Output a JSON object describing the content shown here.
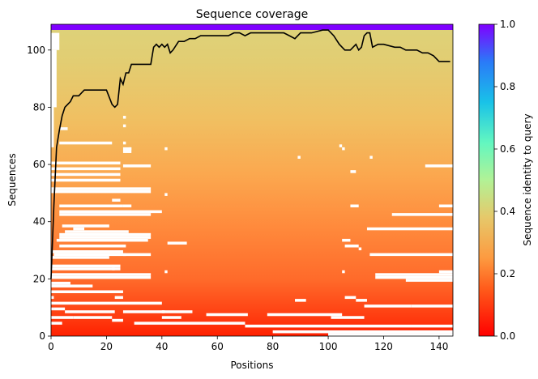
{
  "chart_data": {
    "type": "heatmap",
    "title": "Sequence coverage",
    "xlabel": "Positions",
    "ylabel": "Sequences",
    "xlim": [
      0,
      145
    ],
    "ylim": [
      0,
      109
    ],
    "x_ticks": [
      0,
      20,
      40,
      60,
      80,
      100,
      120,
      140
    ],
    "y_ticks": [
      0,
      20,
      40,
      60,
      80,
      100
    ],
    "colormap": "rainbow_r",
    "colorbar": {
      "label": "Sequence identity to query",
      "range": [
        0,
        1
      ],
      "ticks": [
        "0.0",
        "0.2",
        "0.4",
        "0.6",
        "0.8",
        "1.0"
      ]
    },
    "coverage_line": {
      "color": "#000000",
      "x": [
        0,
        1,
        2,
        3,
        4,
        5,
        6,
        7,
        8,
        10,
        12,
        14,
        20,
        22,
        23,
        24,
        25,
        26,
        27,
        28,
        29,
        30,
        36,
        37,
        38,
        39,
        40,
        41,
        42,
        43,
        44,
        46,
        48,
        50,
        52,
        54,
        56,
        60,
        64,
        66,
        68,
        70,
        72,
        76,
        80,
        84,
        86,
        88,
        90,
        94,
        98,
        100,
        102,
        104,
        106,
        108,
        110,
        111,
        112,
        113,
        114,
        115,
        116,
        118,
        120,
        124,
        126,
        128,
        130,
        132,
        134,
        136,
        138,
        140,
        144
      ],
      "y": [
        20,
        45,
        66,
        72,
        77,
        80,
        81,
        82,
        84,
        84,
        86,
        86,
        86,
        81,
        80,
        81,
        90,
        88,
        92,
        92,
        95,
        95,
        95,
        101,
        102,
        101,
        102,
        101,
        102,
        99,
        100,
        103,
        103,
        104,
        104,
        105,
        105,
        105,
        105,
        106,
        106,
        105,
        106,
        106,
        106,
        106,
        105,
        104,
        106,
        106,
        107,
        107,
        105,
        102,
        100,
        100,
        102,
        100,
        101,
        105,
        106,
        106,
        101,
        102,
        102,
        101,
        101,
        100,
        100,
        100,
        99,
        99,
        98,
        96,
        96
      ]
    },
    "identity_trend": {
      "sequence_index": [
        0,
        5,
        10,
        20,
        30,
        40,
        50,
        60,
        70,
        80,
        90,
        100,
        108,
        109
      ],
      "identity": [
        0.04,
        0.08,
        0.12,
        0.16,
        0.2,
        0.23,
        0.26,
        0.29,
        0.31,
        0.33,
        0.35,
        0.37,
        0.38,
        1.0
      ]
    }
  }
}
